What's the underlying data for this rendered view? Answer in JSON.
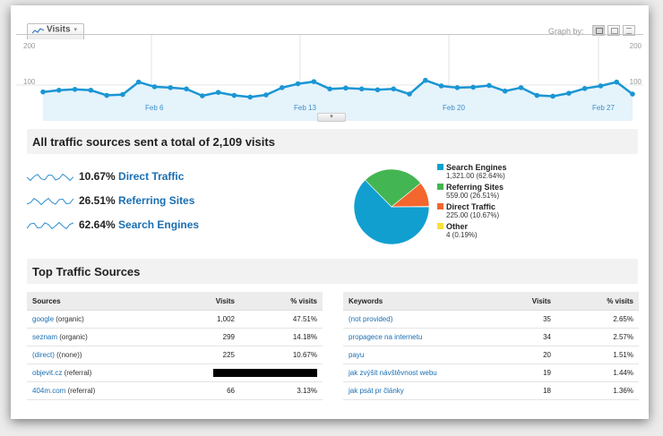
{
  "graph": {
    "visits_label": "Visits",
    "graph_by_label": "Graph by:",
    "y_top_left": "200",
    "y_top_right": "200",
    "y_mid_left": "100",
    "y_mid_right": "100",
    "date_labels": [
      "Feb 6",
      "Feb 13",
      "Feb 20",
      "Feb 27"
    ]
  },
  "chart_data": [
    {
      "type": "area",
      "ylim": [
        0,
        200
      ],
      "y_ticks": [
        100,
        200
      ],
      "x_tick_labels": [
        "Feb 6",
        "Feb 13",
        "Feb 20",
        "Feb 27"
      ],
      "series": [
        {
          "values": [
            84,
            88,
            90,
            88,
            76,
            78,
            107,
            96,
            94,
            91,
            75,
            83,
            76,
            72,
            77,
            94,
            103,
            108,
            91,
            93,
            91,
            89,
            91,
            79,
            111,
            98,
            94,
            95,
            99,
            86,
            94,
            76,
            74,
            81,
            92,
            98,
            107,
            79
          ],
          "color": "#1a96d4"
        }
      ]
    },
    {
      "type": "pie",
      "categories": [
        "Search Engines",
        "Referring Sites",
        "Direct Traffic",
        "Other"
      ],
      "values": [
        1321.0,
        559.0,
        225.0,
        4
      ],
      "colors": [
        "#119fd0",
        "#44b553",
        "#f3662e",
        "#f6e23c"
      ]
    }
  ],
  "summary": {
    "title": "All traffic sources sent a total of 2,109 visits",
    "metrics": [
      {
        "pct": "10.67%",
        "label": "Direct Traffic"
      },
      {
        "pct": "26.51%",
        "label": "Referring Sites"
      },
      {
        "pct": "62.64%",
        "label": "Search Engines"
      }
    ],
    "legend": [
      {
        "name": "Search Engines",
        "detail": "1,321.00 (62.64%)",
        "color": "#119fd0"
      },
      {
        "name": "Referring Sites",
        "detail": "559.00 (26.51%)",
        "color": "#44b553"
      },
      {
        "name": "Direct Traffic",
        "detail": "225.00 (10.67%)",
        "color": "#f3662e"
      },
      {
        "name": "Other",
        "detail": "4 (0.19%)",
        "color": "#f6e23c"
      }
    ]
  },
  "top_sources": {
    "title": "Top Traffic Sources",
    "sources_table": {
      "headers": [
        "Sources",
        "Visits",
        "% visits"
      ],
      "rows": [
        {
          "link": "google",
          "suffix": " (organic)",
          "visits": "1,002",
          "pct": "47.51%"
        },
        {
          "link": "seznam",
          "suffix": " (organic)",
          "visits": "299",
          "pct": "14.18%"
        },
        {
          "link": "(direct)",
          "suffix": " ((none))",
          "visits": "225",
          "pct": "10.67%"
        },
        {
          "link": "objevit.cz",
          "suffix": " (referral)",
          "visits": "",
          "pct": ""
        },
        {
          "link": "404m.com",
          "suffix": " (referral)",
          "visits": "66",
          "pct": "3.13%"
        }
      ]
    },
    "keywords_table": {
      "headers": [
        "Keywords",
        "Visits",
        "% visits"
      ],
      "rows": [
        {
          "link": "(not provided)",
          "visits": "35",
          "pct": "2.65%"
        },
        {
          "link": "propagece na internetu",
          "visits": "34",
          "pct": "2.57%"
        },
        {
          "link": "payu",
          "visits": "20",
          "pct": "1.51%"
        },
        {
          "link": "jak zvýšit návštěvnost webu",
          "visits": "19",
          "pct": "1.44%"
        },
        {
          "link": "jak psát pr články",
          "visits": "18",
          "pct": "1.36%"
        }
      ]
    }
  },
  "colors": {
    "accent": "#1a96d4",
    "link": "#1a6fb3"
  }
}
